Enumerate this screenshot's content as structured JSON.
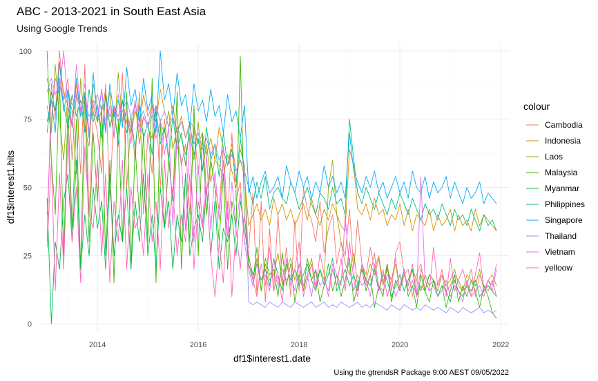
{
  "chart_data": {
    "type": "line",
    "title": "ABC - 2013-2021 in South East Asia",
    "subtitle": "Using Google Trends",
    "xlabel": "df1$interest1.date",
    "ylabel": "df1$interest1.hits",
    "caption": "Using the gtrendsR Package  9:00 AEST 09/05/2022",
    "legend_title": "colour",
    "legend_position": "right",
    "grid": true,
    "xlim": [
      "2012-11-01",
      "2022-03-01"
    ],
    "ylim": [
      -3,
      103
    ],
    "x_ticks": [
      "2014-01-01",
      "2016-01-01",
      "2018-01-01",
      "2020-01-01",
      "2022-01-01"
    ],
    "x_tick_labels": [
      "2014",
      "2016",
      "2018",
      "2020",
      "2022"
    ],
    "y_ticks": [
      0,
      25,
      50,
      75,
      100
    ],
    "y_tick_labels": [
      "0",
      "25",
      "50",
      "75",
      "100"
    ],
    "x_start": "2013-01",
    "x_end": "2021-12",
    "x_frequency": "monthly",
    "series": [
      {
        "name": "Cambodia",
        "color": "#F8766D",
        "values": [
          30,
          88,
          75,
          100,
          82,
          90,
          60,
          85,
          55,
          95,
          40,
          78,
          70,
          55,
          88,
          45,
          80,
          65,
          92,
          50,
          74,
          60,
          85,
          40,
          70,
          55,
          80,
          50,
          75,
          62,
          45,
          70,
          58,
          66,
          40,
          72,
          55,
          68,
          48,
          60,
          50,
          42,
          65,
          38,
          70,
          45,
          52,
          30,
          28,
          48,
          10,
          45,
          8,
          35,
          12,
          40,
          15,
          28,
          10,
          38,
          12,
          50,
          42,
          38,
          30,
          45,
          26,
          35,
          40,
          22,
          30,
          25,
          42,
          20,
          38,
          22,
          18,
          28,
          20,
          25,
          15,
          22,
          12,
          26,
          30,
          18,
          20,
          10,
          18,
          22,
          12,
          18,
          16,
          14,
          20,
          12,
          14,
          18,
          16,
          12,
          14,
          20,
          10,
          18,
          14,
          12,
          16,
          10
        ]
      },
      {
        "name": "Indonesia",
        "color": "#D89000",
        "values": [
          90,
          82,
          78,
          95,
          85,
          80,
          72,
          88,
          76,
          84,
          70,
          80,
          74,
          78,
          86,
          72,
          80,
          76,
          82,
          74,
          70,
          78,
          72,
          84,
          76,
          80,
          74,
          86,
          78,
          72,
          80,
          70,
          76,
          68,
          74,
          72,
          66,
          70,
          62,
          68,
          60,
          72,
          64,
          58,
          66,
          56,
          60,
          54,
          36,
          40,
          44,
          38,
          42,
          36,
          46,
          40,
          44,
          38,
          42,
          36,
          40,
          44,
          38,
          46,
          40,
          36,
          42,
          38,
          44,
          40,
          36,
          34,
          64,
          58,
          42,
          40,
          44,
          38,
          46,
          40,
          42,
          36,
          40,
          38,
          44,
          36,
          42,
          34,
          40,
          38,
          36,
          42,
          34,
          40,
          36,
          38,
          42,
          34,
          40,
          36,
          38,
          34,
          42,
          36,
          40,
          38,
          36,
          34
        ]
      },
      {
        "name": "Laos",
        "color": "#A3A500",
        "values": [
          80,
          70,
          95,
          75,
          60,
          85,
          78,
          55,
          90,
          72,
          65,
          88,
          80,
          70,
          75,
          85,
          68,
          92,
          74,
          78,
          70,
          82,
          66,
          76,
          72,
          68,
          80,
          74,
          70,
          78,
          64,
          72,
          68,
          62,
          70,
          60,
          74,
          56,
          66,
          52,
          60,
          58,
          54,
          62,
          56,
          50,
          64,
          58,
          20,
          14,
          24,
          12,
          22,
          16,
          18,
          26,
          14,
          20,
          24,
          16,
          22,
          12,
          18,
          24,
          14,
          20,
          16,
          50,
          60,
          40,
          30,
          22,
          18,
          26,
          14,
          20,
          16,
          22,
          18,
          24,
          14,
          20,
          16,
          22,
          12,
          18,
          14,
          20,
          16,
          12,
          18,
          14,
          16,
          12,
          18,
          14,
          16,
          20,
          14,
          12,
          18,
          16,
          14,
          20,
          12,
          16,
          18,
          14
        ]
      },
      {
        "name": "Malaysia",
        "color": "#39B600",
        "values": [
          100,
          60,
          40,
          90,
          25,
          80,
          35,
          75,
          20,
          85,
          30,
          70,
          45,
          80,
          25,
          60,
          15,
          75,
          30,
          85,
          20,
          65,
          40,
          70,
          30,
          90,
          15,
          75,
          35,
          60,
          45,
          85,
          20,
          55,
          30,
          80,
          25,
          70,
          40,
          60,
          50,
          30,
          55,
          20,
          45,
          35,
          98,
          40,
          22,
          16,
          28,
          12,
          24,
          18,
          20,
          10,
          26,
          14,
          22,
          8,
          18,
          12,
          24,
          16,
          20,
          8,
          14,
          22,
          12,
          18,
          10,
          16,
          24,
          8,
          14,
          20,
          12,
          18,
          6,
          14,
          10,
          22,
          8,
          16,
          12,
          20,
          10,
          14,
          6,
          18,
          12,
          8,
          16,
          10,
          14,
          6,
          12,
          18,
          8,
          14,
          10,
          16,
          12,
          6,
          14,
          10,
          4,
          2
        ]
      },
      {
        "name": "Myanmar",
        "color": "#00BB4E",
        "values": [
          46,
          0,
          30,
          20,
          45,
          55,
          30,
          60,
          20,
          40,
          25,
          50,
          35,
          45,
          20,
          55,
          25,
          40,
          30,
          50,
          20,
          45,
          30,
          55,
          25,
          40,
          20,
          50,
          35,
          45,
          20,
          40,
          30,
          55,
          25,
          35,
          40,
          30,
          50,
          25,
          45,
          20,
          35,
          30,
          40,
          25,
          45,
          35,
          24,
          18,
          22,
          16,
          20,
          14,
          24,
          18,
          12,
          22,
          16,
          20,
          14,
          18,
          22,
          16,
          12,
          20,
          14,
          18,
          24,
          12,
          16,
          20,
          14,
          18,
          12,
          22,
          16,
          14,
          20,
          12,
          18,
          16,
          10,
          14,
          18,
          12,
          16,
          20,
          10,
          14,
          12,
          18,
          16,
          10,
          14,
          12,
          8,
          16,
          12,
          10,
          14,
          12,
          16,
          10,
          12,
          14,
          12,
          10
        ]
      },
      {
        "name": "Philippines",
        "color": "#00BF7D",
        "values": [
          70,
          85,
          78,
          88,
          80,
          72,
          84,
          76,
          82,
          70,
          86,
          74,
          80,
          68,
          84,
          72,
          78,
          66,
          82,
          70,
          76,
          64,
          80,
          68,
          74,
          62,
          78,
          66,
          72,
          60,
          76,
          64,
          70,
          58,
          74,
          62,
          68,
          56,
          72,
          60,
          66,
          54,
          70,
          58,
          64,
          52,
          68,
          56,
          50,
          44,
          52,
          46,
          54,
          42,
          48,
          50,
          46,
          44,
          52,
          48,
          42,
          46,
          50,
          44,
          40,
          48,
          46,
          42,
          50,
          44,
          46,
          40,
          75,
          60,
          48,
          44,
          50,
          46,
          42,
          48,
          44,
          40,
          46,
          42,
          48,
          44,
          40,
          46,
          42,
          38,
          44,
          40,
          42,
          38,
          44,
          40,
          36,
          42,
          38,
          40,
          36,
          42,
          38,
          34,
          40,
          36,
          38,
          34
        ]
      },
      {
        "name": "Singapore",
        "color": "#00ACFC",
        "values": [
          74,
          82,
          70,
          96,
          78,
          86,
          72,
          90,
          76,
          84,
          68,
          92,
          74,
          86,
          70,
          88,
          76,
          82,
          72,
          94,
          80,
          86,
          74,
          90,
          78,
          84,
          70,
          100,
          82,
          88,
          76,
          92,
          80,
          84,
          72,
          88,
          78,
          82,
          74,
          86,
          76,
          80,
          70,
          84,
          74,
          78,
          68,
          80,
          48,
          54,
          46,
          52,
          56,
          48,
          50,
          54,
          46,
          58,
          52,
          48,
          56,
          50,
          54,
          46,
          52,
          48,
          58,
          50,
          54,
          48,
          52,
          46,
          70,
          56,
          52,
          48,
          54,
          50,
          56,
          48,
          52,
          46,
          50,
          54,
          48,
          52,
          46,
          56,
          50,
          48,
          54,
          46,
          52,
          48,
          50,
          54,
          46,
          52,
          48,
          44,
          50,
          46,
          48,
          52,
          44,
          48,
          46,
          44
        ]
      },
      {
        "name": "Thailand",
        "color": "#9590FF",
        "values": [
          85,
          90,
          84,
          88,
          82,
          86,
          80,
          84,
          78,
          82,
          76,
          80,
          84,
          78,
          82,
          76,
          80,
          74,
          78,
          82,
          76,
          80,
          74,
          78,
          72,
          76,
          80,
          74,
          78,
          72,
          76,
          70,
          74,
          68,
          72,
          66,
          70,
          64,
          68,
          62,
          66,
          60,
          64,
          58,
          62,
          56,
          60,
          58,
          8,
          7,
          8,
          7,
          6,
          8,
          7,
          6,
          8,
          7,
          6,
          8,
          7,
          6,
          7,
          8,
          6,
          7,
          8,
          6,
          7,
          6,
          8,
          7,
          6,
          7,
          8,
          6,
          7,
          6,
          8,
          7,
          6,
          5,
          7,
          6,
          5,
          7,
          6,
          5,
          6,
          5,
          7,
          6,
          5,
          6,
          5,
          4,
          6,
          5,
          4,
          6,
          5,
          4,
          5,
          6,
          4,
          5,
          4,
          5
        ]
      },
      {
        "name": "Vietnam",
        "color": "#E76BF3",
        "values": [
          40,
          75,
          90,
          85,
          100,
          80,
          72,
          95,
          78,
          88,
          70,
          82,
          76,
          86,
          72,
          80,
          68,
          84,
          74,
          78,
          66,
          82,
          70,
          76,
          72,
          80,
          68,
          74,
          62,
          72,
          36,
          68,
          60,
          34,
          70,
          30,
          58,
          36,
          62,
          34,
          56,
          38,
          60,
          32,
          52,
          36,
          48,
          30,
          20,
          14,
          22,
          16,
          18,
          12,
          24,
          14,
          20,
          16,
          18,
          12,
          22,
          14,
          18,
          10,
          20,
          14,
          16,
          12,
          22,
          18,
          14,
          40,
          20,
          12,
          18,
          14,
          16,
          10,
          22,
          14,
          12,
          18,
          16,
          10,
          14,
          20,
          12,
          16,
          10,
          54,
          16,
          12,
          14,
          10,
          12,
          16,
          10,
          14,
          12,
          8,
          16,
          10,
          12,
          14,
          10,
          16,
          12,
          20
        ]
      },
      {
        "name": "yelloow",
        "color": "#FF62BC",
        "values": [
          28,
          60,
          12,
          55,
          20,
          70,
          30,
          50,
          15,
          65,
          40,
          35,
          60,
          25,
          55,
          15,
          45,
          30,
          60,
          20,
          50,
          35,
          40,
          25,
          55,
          30,
          45,
          20,
          60,
          35,
          50,
          25,
          40,
          30,
          55,
          20,
          45,
          35,
          50,
          25,
          10,
          30,
          15,
          45,
          10,
          35,
          20,
          40,
          25,
          16,
          10,
          22,
          14,
          28,
          12,
          18,
          8,
          24,
          14,
          20,
          30,
          10,
          16,
          22,
          12,
          26,
          18,
          10,
          20,
          14,
          24,
          12,
          30,
          16,
          10,
          22,
          14,
          18,
          26,
          12,
          20,
          10,
          16,
          24,
          12,
          18,
          14,
          22,
          10,
          20,
          16,
          12,
          28,
          14,
          18,
          10,
          24,
          12,
          16,
          20,
          14,
          10,
          18,
          26,
          12,
          16,
          14,
          22
        ]
      }
    ]
  }
}
